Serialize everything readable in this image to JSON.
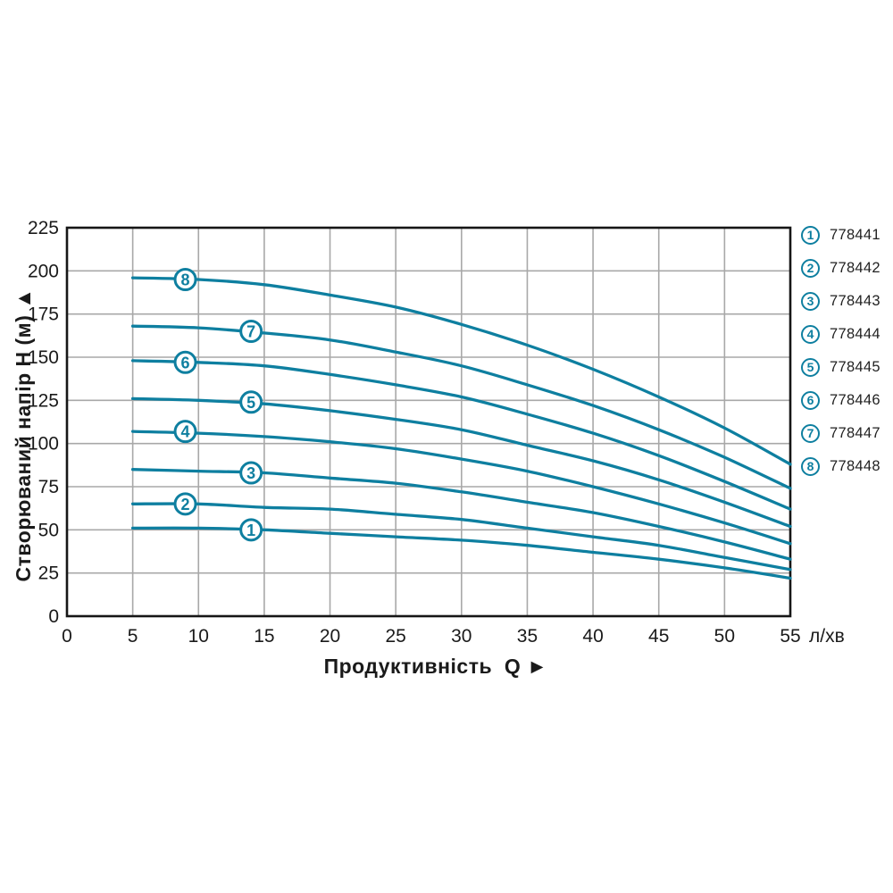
{
  "colors": {
    "curve": "#0e7fa0",
    "grid": "#a8a8a8",
    "frame": "#161616",
    "text": "#1a1a1a",
    "background": "#ffffff"
  },
  "axes": {
    "x_title": "Продуктивність  Q ►",
    "y_title": "Створюваний напір H (м) ▲",
    "x_unit": "л/хв"
  },
  "chart_data": {
    "type": "line",
    "title": "",
    "xlabel": "Продуктивність Q",
    "ylabel": "Створюваний напір H (м)",
    "x_unit": "л/хв",
    "xlim": [
      0,
      55
    ],
    "ylim": [
      0,
      225
    ],
    "x_ticks": [
      0,
      5,
      10,
      15,
      20,
      25,
      30,
      35,
      40,
      45,
      50,
      55
    ],
    "y_ticks": [
      0,
      25,
      50,
      75,
      100,
      125,
      150,
      175,
      200,
      225
    ],
    "grid": true,
    "legend_position": "right-top",
    "x": [
      5,
      10,
      15,
      20,
      25,
      30,
      35,
      40,
      45,
      50,
      55
    ],
    "series": [
      {
        "id": "1",
        "code": "778441",
        "marker": {
          "q": 14,
          "h": 50
        },
        "h": [
          51,
          51,
          50,
          48,
          46,
          44,
          41,
          37,
          33,
          28,
          22
        ]
      },
      {
        "id": "2",
        "code": "778442",
        "marker": {
          "q": 9,
          "h": 65
        },
        "h": [
          65,
          65,
          63,
          62,
          59,
          56,
          51,
          46,
          41,
          34,
          27
        ]
      },
      {
        "id": "3",
        "code": "778443",
        "marker": {
          "q": 14,
          "h": 83
        },
        "h": [
          85,
          84,
          83,
          80,
          77,
          72,
          66,
          60,
          52,
          43,
          33
        ]
      },
      {
        "id": "4",
        "code": "778444",
        "marker": {
          "q": 9,
          "h": 107
        },
        "h": [
          107,
          106,
          104,
          101,
          97,
          91,
          84,
          75,
          65,
          54,
          42
        ]
      },
      {
        "id": "5",
        "code": "778445",
        "marker": {
          "q": 14,
          "h": 124
        },
        "h": [
          126,
          125,
          123,
          119,
          114,
          108,
          99,
          90,
          79,
          66,
          52
        ]
      },
      {
        "id": "6",
        "code": "778446",
        "marker": {
          "q": 9,
          "h": 147
        },
        "h": [
          148,
          147,
          145,
          140,
          134,
          127,
          117,
          106,
          93,
          78,
          62
        ]
      },
      {
        "id": "7",
        "code": "778447",
        "marker": {
          "q": 14,
          "h": 165
        },
        "h": [
          168,
          167,
          164,
          160,
          153,
          145,
          134,
          122,
          108,
          92,
          74
        ]
      },
      {
        "id": "8",
        "code": "778448",
        "marker": {
          "q": 9,
          "h": 195
        },
        "h": [
          196,
          195,
          192,
          186,
          179,
          169,
          157,
          143,
          127,
          109,
          88
        ]
      }
    ]
  }
}
